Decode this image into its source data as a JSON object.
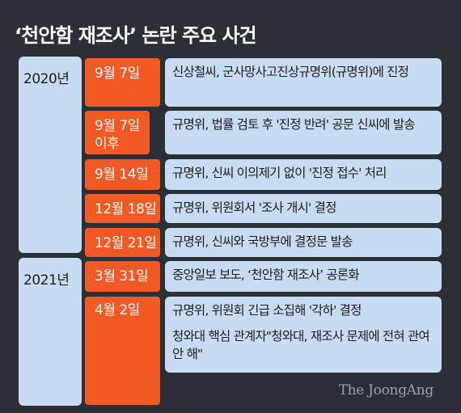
{
  "title": "‘천안함 재조사’ 논란 주요 사건",
  "years": [
    "2020년",
    "2021년"
  ],
  "entries": [
    {
      "date": "9월 7일",
      "text": "신상철씨, 군사망사고진상규명위(규명위)에 진정"
    },
    {
      "date": "9월 7일 이후",
      "text": "규명위, 법률 검토 후 '진정 반려' 공문 신씨에 발송"
    },
    {
      "date": "9월 14일",
      "text": "규명위, 신씨 이의제기 없이 '진정 접수' 처리"
    },
    {
      "date": "12월 18일",
      "text": "규명위, 위원회서 '조사 개시' 결정"
    },
    {
      "date": "12월 21일",
      "text": "규명위, 신씨와 국방부에 결정문 발송"
    },
    {
      "date": "3월 31일",
      "text": "중앙일보 보도, ‘천안함 재조사’ 공론화"
    },
    {
      "date": "4월 2일",
      "text": "규명위, 위원회 긴급 소집해 '각하' 결정"
    }
  ],
  "extra_note": "청와대 핵심 관계자\"청와대, 재조사 문제에 전혀 관여 안 해\"",
  "credit": "The JoongAng",
  "colors": {
    "background": "#2b2f36",
    "panel": "#c7dcf2",
    "accent": "#f15a24",
    "text": "#1c1c1c",
    "title": "#ffffff"
  }
}
